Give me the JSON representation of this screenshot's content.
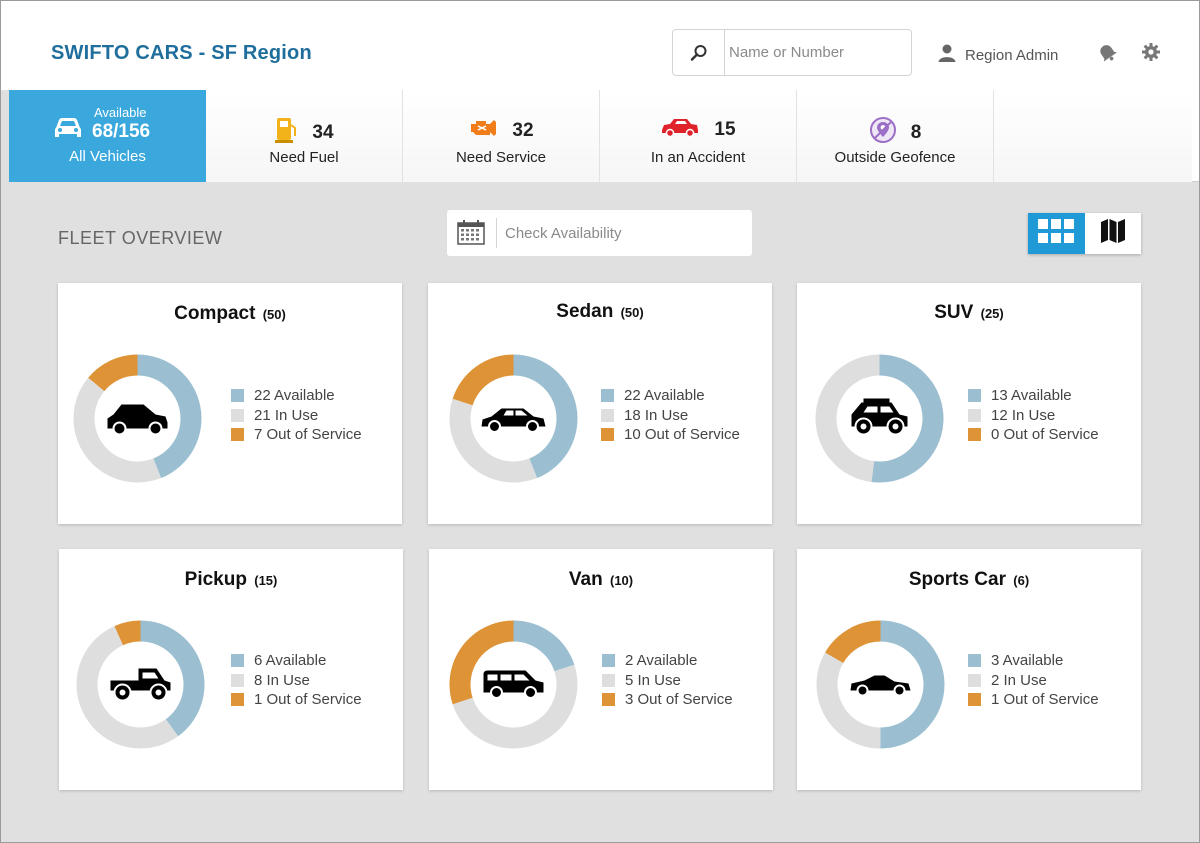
{
  "header": {
    "brand": "SWIFTO CARS - SF Region",
    "search_placeholder": "Name or Number",
    "user_label": "Region Admin"
  },
  "status_strip": {
    "all": {
      "small_label": "Available",
      "value": "68/156",
      "label": "All Vehicles"
    },
    "tiles": [
      {
        "count": "34",
        "label": "Need Fuel",
        "icon": "fuel-pump-icon",
        "color": "#f2b21a"
      },
      {
        "count": "32",
        "label": "Need Service",
        "icon": "engine-icon",
        "color": "#f07d1a"
      },
      {
        "count": "15",
        "label": "In an Accident",
        "icon": "crashed-car-icon",
        "color": "#e0232a"
      },
      {
        "count": "8",
        "label": "Outside Geofence",
        "icon": "geofence-icon",
        "color": "#9b6fc6"
      }
    ]
  },
  "overview": {
    "title": "FLEET OVERVIEW",
    "date_placeholder": "Check Availability",
    "view_modes": [
      "grid",
      "map"
    ],
    "active_view": "grid"
  },
  "colors": {
    "available": "#9bbfd1",
    "in_use": "#dedede",
    "out_of_service": "#de9337",
    "accent": "#3aa8dd"
  },
  "legend_labels": {
    "available": "Available",
    "in_use": "In Use",
    "out_of_service": "Out of Service"
  },
  "categories": [
    {
      "name": "Compact",
      "total_label": "(50)",
      "available": 22,
      "in_use": 21,
      "out_of_service": 7,
      "available_text": "22 Available",
      "in_use_text": "21 In Use",
      "oos_text": "7 Out of Service",
      "icon": "compact-car-icon"
    },
    {
      "name": "Sedan",
      "total_label": "(50)",
      "available": 22,
      "in_use": 18,
      "out_of_service": 10,
      "available_text": "22 Available",
      "in_use_text": "18 In Use",
      "oos_text": "10 Out of Service",
      "icon": "sedan-icon"
    },
    {
      "name": "SUV",
      "total_label": "(25)",
      "available": 13,
      "in_use": 12,
      "out_of_service": 0,
      "available_text": "13 Available",
      "in_use_text": "12 In Use",
      "oos_text": "0 Out of Service",
      "icon": "suv-icon"
    },
    {
      "name": "Pickup",
      "total_label": "(15)",
      "available": 6,
      "in_use": 8,
      "out_of_service": 1,
      "available_text": "6 Available",
      "in_use_text": "8 In Use",
      "oos_text": "1 Out of Service",
      "icon": "pickup-truck-icon"
    },
    {
      "name": "Van",
      "total_label": "(10)",
      "available": 2,
      "in_use": 5,
      "out_of_service": 3,
      "available_text": "2 Available",
      "in_use_text": "5 In Use",
      "oos_text": "3 Out of Service",
      "icon": "van-icon"
    },
    {
      "name": "Sports Car",
      "total_label": "(6)",
      "available": 3,
      "in_use": 2,
      "out_of_service": 1,
      "available_text": "3 Available",
      "in_use_text": "2 In Use",
      "oos_text": "1 Out of Service",
      "icon": "sports-car-icon"
    }
  ]
}
